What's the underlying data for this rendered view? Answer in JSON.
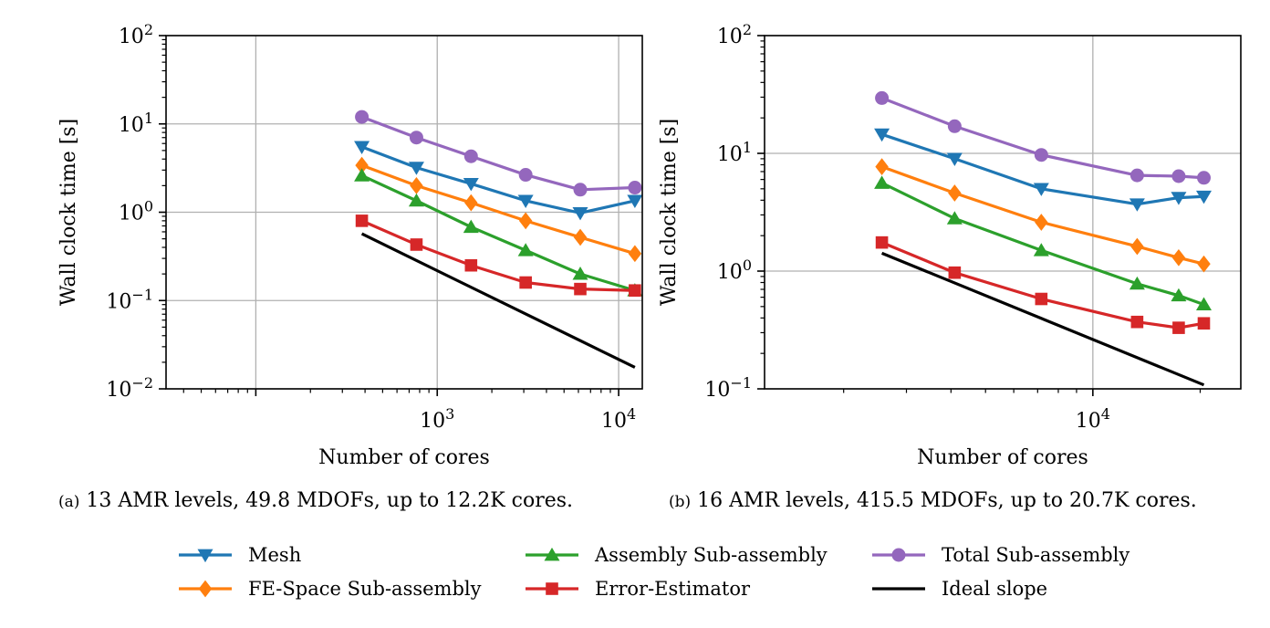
{
  "colors": {
    "mesh": "#1f77b4",
    "fe_space": "#ff7f0e",
    "assembly": "#2ca02c",
    "error_estimator": "#d62728",
    "total": "#9467bd",
    "ideal": "#000000",
    "grid": "#b0b0b0"
  },
  "legend": [
    {
      "key": "mesh",
      "label": "Mesh",
      "marker": "triangle-down"
    },
    {
      "key": "fe_space",
      "label": "FE-Space Sub-assembly",
      "marker": "diamond"
    },
    {
      "key": "assembly",
      "label": "Assembly Sub-assembly",
      "marker": "triangle-up"
    },
    {
      "key": "error_estimator",
      "label": "Error-Estimator",
      "marker": "square"
    },
    {
      "key": "total",
      "label": "Total Sub-assembly",
      "marker": "circle"
    },
    {
      "key": "ideal",
      "label": "Ideal slope",
      "marker": "none"
    }
  ],
  "captions": {
    "a_prefix": "(a)",
    "a_text": "13 AMR levels, 49.8 MDOFs, up to 12.2K cores.",
    "b_prefix": "(b)",
    "b_text": "16 AMR levels, 415.5 MDOFs, up to 20.7K cores."
  },
  "chart_data": [
    {
      "type": "line",
      "xlabel": "Number of cores",
      "ylabel": "Wall clock time [s]",
      "xscale": "log",
      "yscale": "log",
      "xlim": [
        32,
        13500
      ],
      "ylim": [
        0.01,
        100
      ],
      "xticks": [
        {
          "value": 1000,
          "base": "10",
          "exp": "3"
        },
        {
          "value": 10000,
          "base": "10",
          "exp": "4"
        }
      ],
      "yticks": [
        {
          "value": 0.01,
          "base": "10",
          "exp": "−2"
        },
        {
          "value": 0.1,
          "base": "10",
          "exp": "−1"
        },
        {
          "value": 1,
          "base": "10",
          "exp": "0"
        },
        {
          "value": 10,
          "base": "10",
          "exp": "1"
        },
        {
          "value": 100,
          "base": "10",
          "exp": "2"
        }
      ],
      "grid": true,
      "series": [
        {
          "key": "mesh",
          "name": "Mesh",
          "x": [
            384,
            768,
            1536,
            3072,
            6144,
            12288
          ],
          "y": [
            5.5,
            3.2,
            2.1,
            1.35,
            0.98,
            1.35
          ]
        },
        {
          "key": "fe_space",
          "name": "FE-Space Sub-assembly",
          "x": [
            384,
            768,
            1536,
            3072,
            6144,
            12288
          ],
          "y": [
            3.4,
            2.0,
            1.28,
            0.8,
            0.52,
            0.34
          ]
        },
        {
          "key": "assembly",
          "name": "Assembly Sub-assembly",
          "x": [
            384,
            768,
            1536,
            3072,
            6144,
            12288
          ],
          "y": [
            2.6,
            1.35,
            0.68,
            0.37,
            0.2,
            0.13
          ]
        },
        {
          "key": "error_estimator",
          "name": "Error-Estimator",
          "x": [
            384,
            768,
            1536,
            3072,
            6144,
            12288
          ],
          "y": [
            0.8,
            0.43,
            0.25,
            0.16,
            0.135,
            0.13
          ]
        },
        {
          "key": "total",
          "name": "Total Sub-assembly",
          "x": [
            384,
            768,
            1536,
            3072,
            6144,
            12288
          ],
          "y": [
            12.0,
            7.0,
            4.3,
            2.65,
            1.8,
            1.9
          ]
        },
        {
          "key": "ideal",
          "name": "Ideal slope",
          "x": [
            384,
            12288
          ],
          "y": [
            0.57,
            0.0175
          ]
        }
      ]
    },
    {
      "type": "line",
      "xlabel": "Number of cores",
      "ylabel": "Wall clock time [s]",
      "xscale": "log",
      "yscale": "log",
      "xlim": [
        1200,
        26000
      ],
      "ylim": [
        0.1,
        100
      ],
      "xticks": [
        {
          "value": 10000,
          "base": "10",
          "exp": "4"
        }
      ],
      "yticks": [
        {
          "value": 0.1,
          "base": "10",
          "exp": "−1"
        },
        {
          "value": 1,
          "base": "10",
          "exp": "0"
        },
        {
          "value": 10,
          "base": "10",
          "exp": "1"
        },
        {
          "value": 100,
          "base": "10",
          "exp": "2"
        }
      ],
      "grid": true,
      "series": [
        {
          "key": "mesh",
          "name": "Mesh",
          "x": [
            2560,
            4096,
            7168,
            13312,
            17408,
            20480
          ],
          "y": [
            14.5,
            9.0,
            5.0,
            3.7,
            4.2,
            4.3
          ]
        },
        {
          "key": "fe_space",
          "name": "FE-Space Sub-assembly",
          "x": [
            2560,
            4096,
            7168,
            13312,
            17408,
            20480
          ],
          "y": [
            7.7,
            4.6,
            2.6,
            1.62,
            1.3,
            1.15
          ]
        },
        {
          "key": "assembly",
          "name": "Assembly Sub-assembly",
          "x": [
            2560,
            4096,
            7168,
            13312,
            17408,
            20480
          ],
          "y": [
            5.6,
            2.8,
            1.5,
            0.78,
            0.62,
            0.52
          ]
        },
        {
          "key": "error_estimator",
          "name": "Error-Estimator",
          "x": [
            2560,
            4096,
            7168,
            13312,
            17408,
            20480
          ],
          "y": [
            1.75,
            0.97,
            0.58,
            0.37,
            0.33,
            0.36
          ]
        },
        {
          "key": "total",
          "name": "Total Sub-assembly",
          "x": [
            2560,
            4096,
            7168,
            13312,
            17408,
            20480
          ],
          "y": [
            29.5,
            17.0,
            9.7,
            6.5,
            6.4,
            6.2
          ]
        },
        {
          "key": "ideal",
          "name": "Ideal slope",
          "x": [
            2560,
            20480
          ],
          "y": [
            1.42,
            0.108
          ]
        }
      ]
    }
  ]
}
